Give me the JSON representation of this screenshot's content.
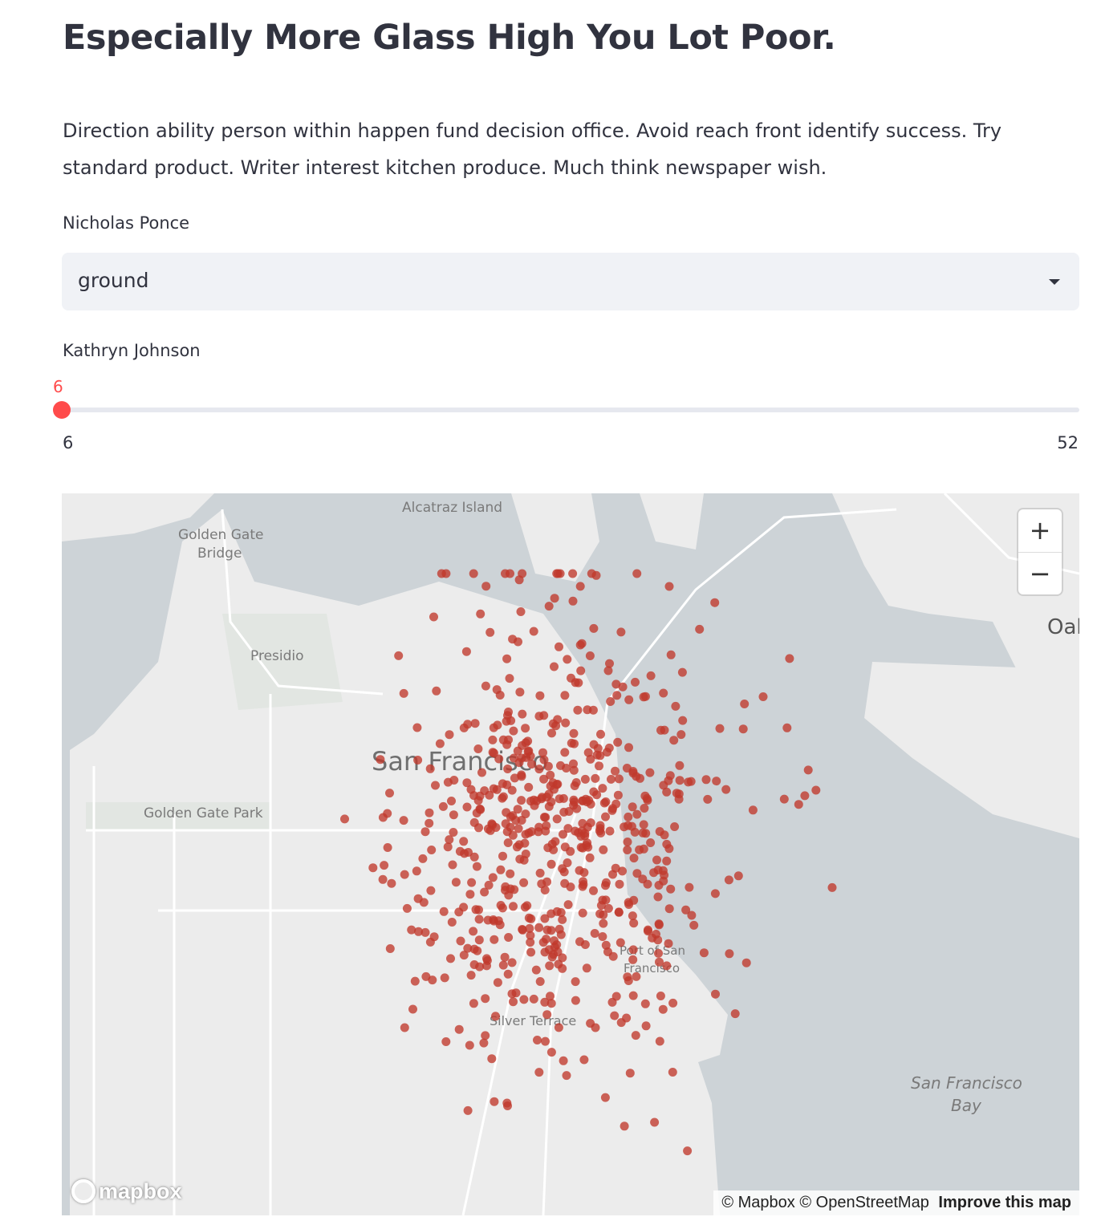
{
  "header": {
    "title": "Especially More Glass High You Lot Poor.",
    "description": "Direction ability person within happen fund decision office. Avoid reach front identify success. Try standard product. Writer interest kitchen produce. Much think newspaper wish."
  },
  "select_widget": {
    "label": "Nicholas Ponce",
    "value": "ground"
  },
  "slider_widget": {
    "label": "Kathryn Johnson",
    "value": 6,
    "value_label": "6",
    "min_label": "6",
    "max_label": "52",
    "min": 6,
    "max": 52
  },
  "map": {
    "place_labels": {
      "alcatraz": "Alcatraz Island",
      "golden_gate_bridge_1": "Golden Gate",
      "golden_gate_bridge_2": "Bridge",
      "presidio": "Presidio",
      "san_francisco": "San Francisco",
      "golden_gate_park": "Golden Gate Park",
      "port_1": "Port of San",
      "port_2": "Francisco",
      "silver_terrace": "Silver Terrace",
      "bay_1": "San Francisco",
      "bay_2": "Bay",
      "oakland": "Oak"
    },
    "zoom_in": "+",
    "zoom_out": "−",
    "attribution_mapbox": "© Mapbox",
    "attribution_osm": "© OpenStreetMap",
    "attribution_improve": "Improve this map",
    "logo_text": "mapbox",
    "colors": {
      "water": "#cdd3d7",
      "land": "#ececec",
      "park": "#e3e5e3",
      "point": "#c0392b",
      "accent": "#ff4b4b"
    }
  }
}
